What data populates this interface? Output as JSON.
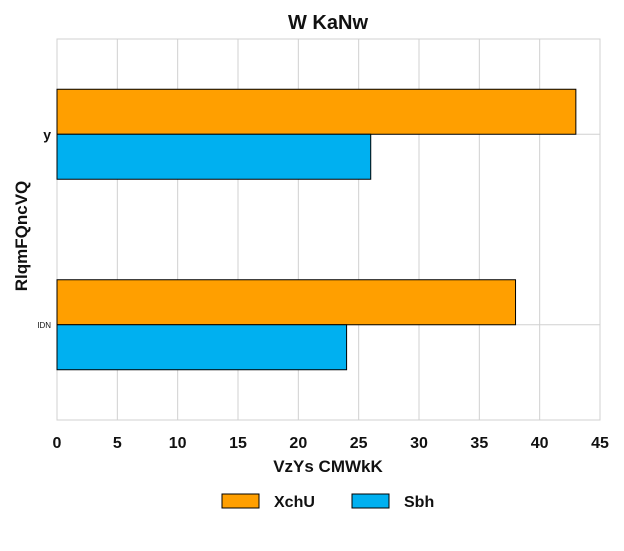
{
  "chart_data": {
    "type": "bar",
    "orientation": "horizontal",
    "title": "W KaNw",
    "xlabel": "VzYs CMWkK",
    "ylabel": "RlqmFQncVQ",
    "categories": [
      "y",
      "IDN"
    ],
    "series": [
      {
        "name": "XchU",
        "values": [
          43,
          38
        ],
        "color": "#ff9f00"
      },
      {
        "name": "Sbh",
        "values": [
          26,
          24
        ],
        "color": "#00b0f0"
      }
    ],
    "xlim": [
      0,
      45
    ],
    "xticks": [
      "0",
      "5",
      "10",
      "15",
      "20",
      "25",
      "30",
      "35",
      "40",
      "45"
    ],
    "grid": true,
    "legend_position": "bottom"
  }
}
